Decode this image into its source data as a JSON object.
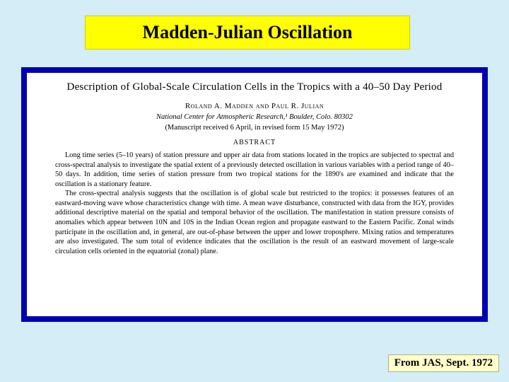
{
  "slide": {
    "title": "Madden-Julian Oscillation",
    "citation": "From JAS, Sept. 1972"
  },
  "paper": {
    "title": "Description of Global-Scale Circulation Cells in the Tropics with a 40–50 Day Period",
    "authors": "Roland A. Madden and Paul R. Julian",
    "affiliation": "National Center for Atmospheric Research,¹ Boulder, Colo. 80302",
    "manuscript": "(Manuscript received 6 April, in revised form 15 May 1972)",
    "abstract_label": "ABSTRACT",
    "abstract_para1": "Long time series (5–10 years) of station pressure and upper air data from stations located in the tropics are subjected to spectral and cross-spectral analysis to investigate the spatial extent of a previously detected oscillation in various variables with a period range of 40–50 days. In addition, time series of station pressure from two tropical stations for the 1890's are examined and indicate that the oscillation is a stationary feature.",
    "abstract_para2": "The cross-spectral analysis suggests that the oscillation is of global scale but restricted to the tropics: it possesses features of an eastward-moving wave whose characteristics change with time. A mean wave disturbance, constructed with data from the IGY, provides additional descriptive material on the spatial and temporal behavior of the oscillation. The manifestation in station pressure consists of anomalies which appear between 10N and 10S in the Indian Ocean region and propagate eastward to the Eastern Pacific. Zonal winds participate in the oscillation and, in general, are out-of-phase between the upper and lower troposphere. Mixing ratios and temperatures are also investigated. The sum total of evidence indicates that the oscillation is the result of an eastward movement of large-scale circulation cells oriented in the equatorial (zonal) plane."
  },
  "colors": {
    "page_bg": "#d4edf7",
    "title_bg": "#ffff00",
    "frame_bg": "#0000b0",
    "paper_bg": "#ffffff",
    "citation_bg": "#ffffcc"
  }
}
